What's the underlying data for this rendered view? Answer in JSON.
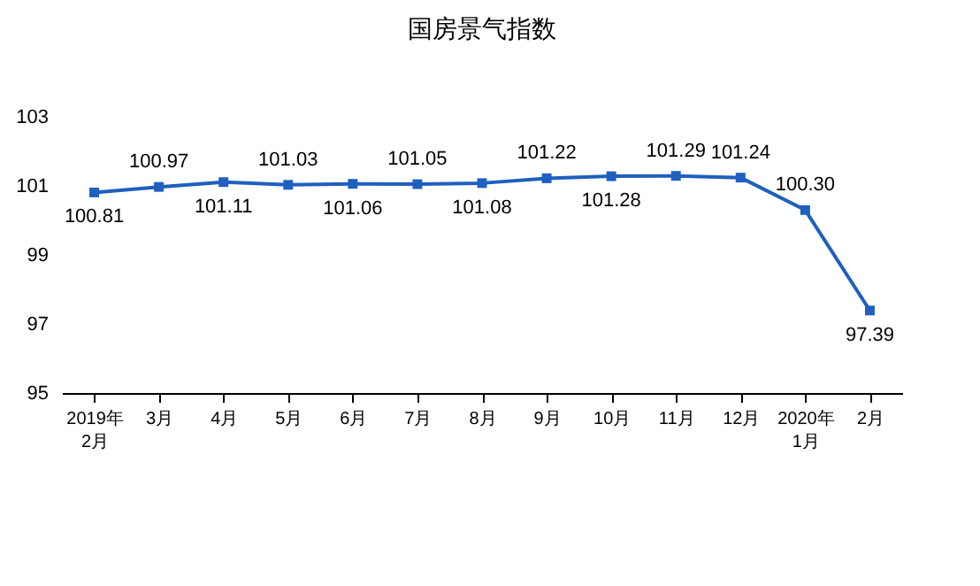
{
  "chart_data": {
    "type": "line",
    "title": "国房景气指数",
    "categories": [
      "2019年\n2月",
      "3月",
      "4月",
      "5月",
      "6月",
      "7月",
      "8月",
      "9月",
      "10月",
      "11月",
      "12月",
      "2020年\n1月",
      "2月"
    ],
    "series": [
      {
        "color": "#1f5fc0",
        "values": [
          100.81,
          100.97,
          101.11,
          101.03,
          101.06,
          101.05,
          101.08,
          101.22,
          101.28,
          101.29,
          101.24,
          100.3,
          97.39
        ]
      }
    ],
    "ylim": [
      95,
      103
    ],
    "yticks": [
      95,
      97,
      99,
      101,
      103
    ],
    "grid": false,
    "marker": "square",
    "line_style": "solid",
    "value_labels": [
      "100.81",
      "100.97",
      "101.11",
      "101.03",
      "101.06",
      "101.05",
      "101.08",
      "101.22",
      "101.28",
      "101.29",
      "101.24",
      "100.30",
      "97.39"
    ]
  }
}
